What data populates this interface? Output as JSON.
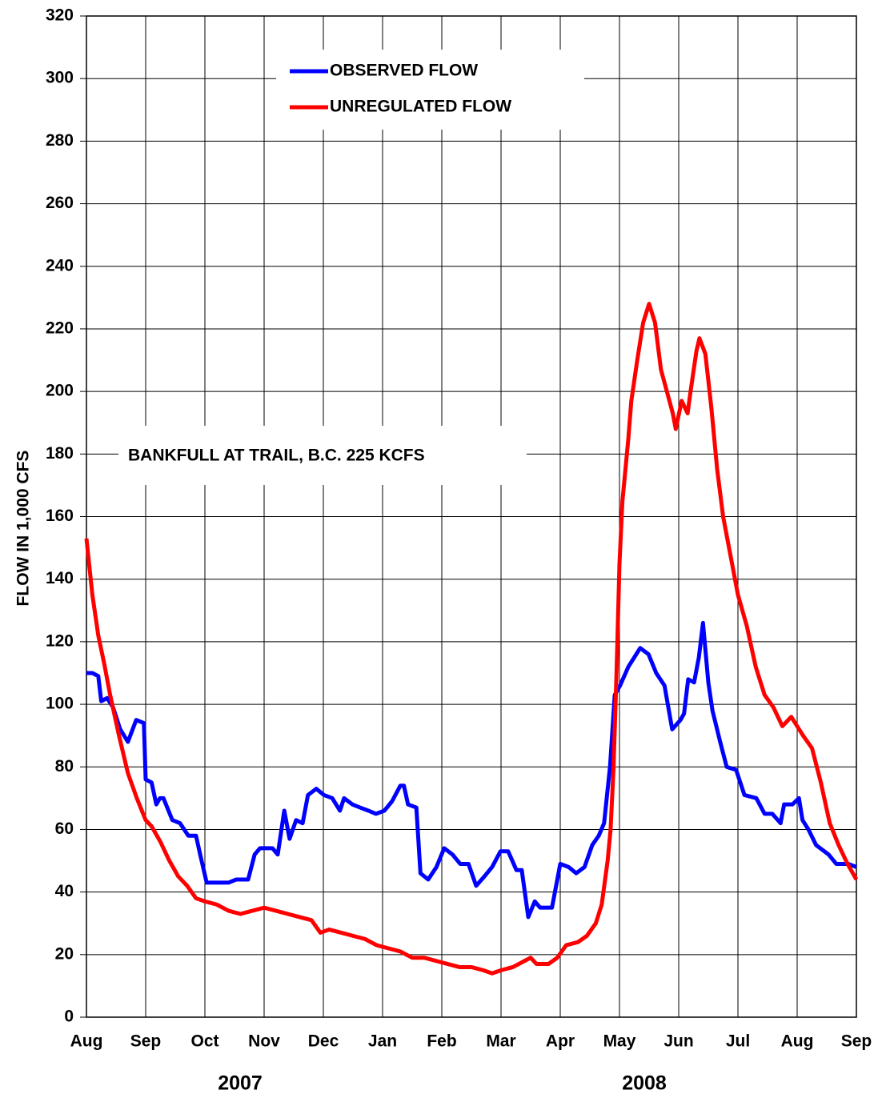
{
  "chart_data": {
    "type": "line",
    "ylabel": "FLOW IN 1,000 CFS",
    "annotation": "BANKFULL AT TRAIL, B.C. 225 KCFS",
    "years": [
      "2007",
      "2008"
    ],
    "xlim": [
      0,
      13
    ],
    "xticks": [
      {
        "value": 0,
        "label": "Aug"
      },
      {
        "value": 1,
        "label": "Sep"
      },
      {
        "value": 2,
        "label": "Oct"
      },
      {
        "value": 3,
        "label": "Nov"
      },
      {
        "value": 4,
        "label": "Dec"
      },
      {
        "value": 5,
        "label": "Jan"
      },
      {
        "value": 6,
        "label": "Feb"
      },
      {
        "value": 7,
        "label": "Mar"
      },
      {
        "value": 8,
        "label": "Apr"
      },
      {
        "value": 9,
        "label": "May"
      },
      {
        "value": 10,
        "label": "Jun"
      },
      {
        "value": 11,
        "label": "Jul"
      },
      {
        "value": 12,
        "label": "Aug"
      },
      {
        "value": 13,
        "label": "Sep"
      }
    ],
    "ylim": [
      0,
      320
    ],
    "yticks": [
      0,
      20,
      40,
      60,
      80,
      100,
      120,
      140,
      160,
      180,
      200,
      220,
      240,
      260,
      280,
      300,
      320
    ],
    "grid": true,
    "series": [
      {
        "name": "OBSERVED FLOW",
        "color": "#0000ff",
        "x": [
          0,
          0.1,
          0.2,
          0.25,
          0.35,
          0.45,
          0.57,
          0.7,
          0.84,
          0.97,
          1.0,
          1.1,
          1.18,
          1.24,
          1.3,
          1.45,
          1.58,
          1.72,
          1.85,
          1.92,
          2.03,
          2.19,
          2.4,
          2.53,
          2.73,
          2.84,
          2.93,
          3.14,
          3.23,
          3.34,
          3.43,
          3.54,
          3.65,
          3.74,
          3.88,
          4.01,
          4.15,
          4.28,
          4.35,
          4.49,
          4.62,
          4.76,
          4.89,
          5.03,
          5.16,
          5.3,
          5.36,
          5.43,
          5.57,
          5.64,
          5.77,
          5.91,
          6.04,
          6.18,
          6.31,
          6.45,
          6.58,
          6.72,
          6.85,
          6.99,
          7.12,
          7.26,
          7.35,
          7.46,
          7.57,
          7.66,
          7.86,
          8.0,
          8.14,
          8.27,
          8.41,
          8.54,
          8.65,
          8.74,
          8.84,
          8.92,
          9.01,
          9.15,
          9.35,
          9.49,
          9.62,
          9.76,
          9.89,
          10.03,
          10.09,
          10.16,
          10.26,
          10.34,
          10.41,
          10.5,
          10.57,
          10.7,
          10.81,
          10.97,
          11.11,
          11.31,
          11.45,
          11.58,
          11.72,
          11.78,
          11.92,
          12.03,
          12.09,
          12.19,
          12.32,
          12.53,
          12.66,
          12.86,
          13.0
        ],
        "values": [
          110,
          110,
          109,
          101,
          102,
          99,
          92,
          88,
          95,
          94,
          76,
          75,
          68,
          70,
          70,
          63,
          62,
          58,
          58,
          52,
          43,
          43,
          43,
          44,
          44,
          52,
          54,
          54,
          52,
          66,
          57,
          63,
          62,
          71,
          73,
          71,
          70,
          66,
          70,
          68,
          67,
          66,
          65,
          66,
          69,
          74,
          74,
          68,
          67,
          46,
          44,
          48,
          54,
          52,
          49,
          49,
          42,
          45,
          48,
          53,
          53,
          47,
          47,
          32,
          37,
          35,
          35,
          49,
          48,
          46,
          48,
          55,
          58,
          62,
          80,
          103,
          106,
          112,
          118,
          116,
          110,
          106,
          92,
          95,
          97,
          108,
          107,
          115,
          126,
          107,
          98,
          88,
          80,
          79,
          71,
          70,
          65,
          65,
          62,
          68,
          68,
          70,
          63,
          60,
          55,
          52,
          49,
          49,
          48
        ]
      },
      {
        "name": "UNREGULATED FLOW",
        "color": "#ff0000",
        "x": [
          0,
          0.1,
          0.2,
          0.3,
          0.4,
          0.55,
          0.7,
          0.85,
          1.0,
          1.1,
          1.25,
          1.4,
          1.55,
          1.7,
          1.85,
          2.0,
          2.2,
          2.4,
          2.6,
          2.8,
          3.0,
          3.2,
          3.4,
          3.6,
          3.8,
          3.95,
          4.1,
          4.3,
          4.5,
          4.7,
          4.9,
          5.1,
          5.3,
          5.5,
          5.7,
          5.9,
          6.1,
          6.3,
          6.5,
          6.7,
          6.85,
          7.0,
          7.2,
          7.4,
          7.5,
          7.6,
          7.8,
          7.95,
          8.1,
          8.3,
          8.45,
          8.6,
          8.7,
          8.8,
          8.85,
          8.9,
          8.95,
          9.0,
          9.05,
          9.15,
          9.2,
          9.3,
          9.4,
          9.5,
          9.6,
          9.7,
          9.8,
          9.9,
          9.95,
          10.05,
          10.15,
          10.2,
          10.3,
          10.35,
          10.45,
          10.55,
          10.65,
          10.75,
          10.9,
          11.0,
          11.15,
          11.3,
          11.45,
          11.6,
          11.75,
          11.85,
          11.9,
          12.0,
          12.1,
          12.25,
          12.4,
          12.55,
          12.7,
          12.85,
          13.0
        ],
        "values": [
          153,
          135,
          122,
          113,
          103,
          90,
          78,
          70,
          63,
          61,
          56,
          50,
          45,
          42,
          38,
          37,
          36,
          34,
          33,
          34,
          35,
          34,
          33,
          32,
          31,
          27,
          28,
          27,
          26,
          25,
          23,
          22,
          21,
          19,
          19,
          18,
          17,
          16,
          16,
          15,
          14,
          15,
          16,
          18,
          19,
          17,
          17,
          19,
          23,
          24,
          26,
          30,
          36,
          50,
          60,
          80,
          110,
          145,
          165,
          185,
          197,
          210,
          222,
          228,
          222,
          207,
          200,
          193,
          188,
          197,
          193,
          200,
          213,
          217,
          212,
          195,
          175,
          160,
          145,
          135,
          125,
          112,
          103,
          99,
          93,
          95,
          96,
          93,
          90,
          86,
          75,
          62,
          55,
          49,
          44
        ]
      }
    ]
  }
}
